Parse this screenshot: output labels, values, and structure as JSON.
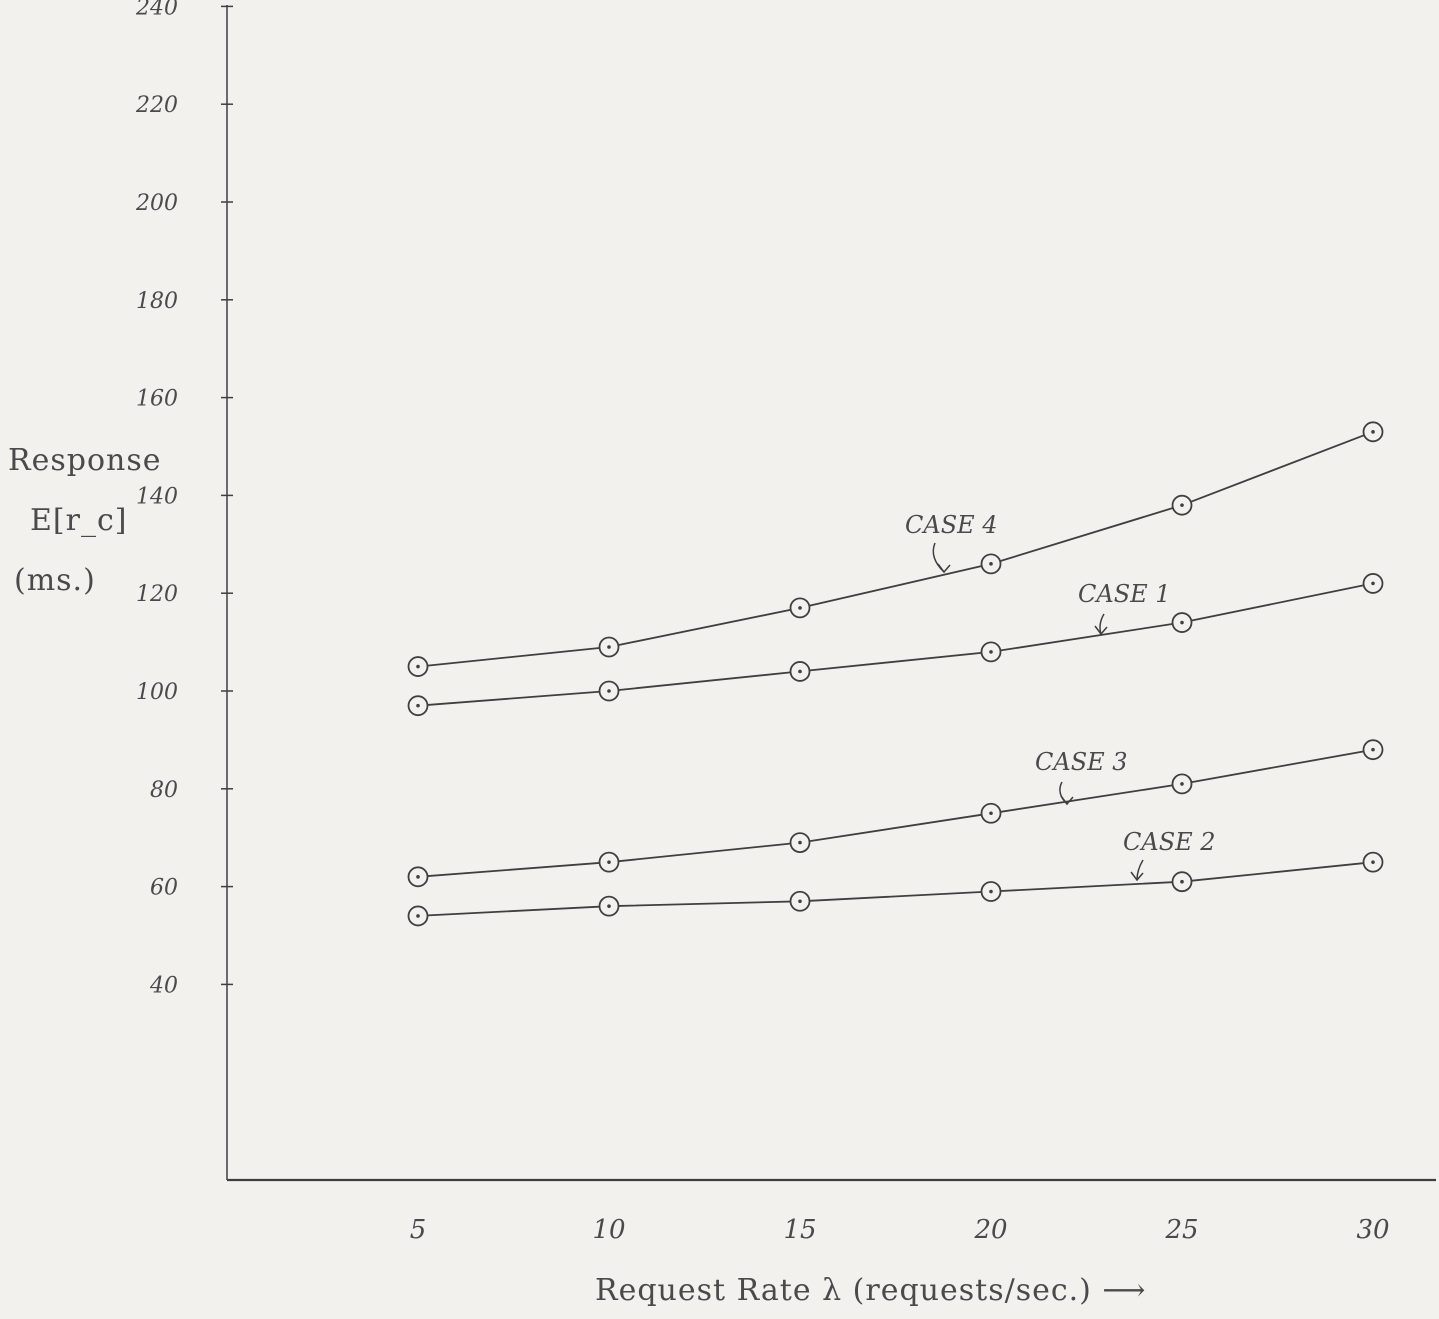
{
  "chart_data": {
    "type": "line",
    "xlabel": "Request Rate λ (requests/sec.) ⟶",
    "ylabel": {
      "line1": "Response",
      "line2": "E[r_c]",
      "line3": "(ms.)"
    },
    "x": [
      5,
      10,
      15,
      20,
      25,
      30
    ],
    "xticks": [
      "5",
      "10",
      "15",
      "20",
      "25",
      "30"
    ],
    "yticks": [
      "40",
      "60",
      "80",
      "100",
      "120",
      "140",
      "160",
      "180",
      "200",
      "220",
      "240"
    ],
    "ylim": [
      0,
      240
    ],
    "grid": false,
    "legend": "none",
    "series": [
      {
        "name": "CASE 4",
        "values": [
          105,
          109,
          117,
          126,
          138,
          153
        ]
      },
      {
        "name": "CASE 1",
        "values": [
          97,
          100,
          104,
          108,
          114,
          122
        ]
      },
      {
        "name": "CASE 3",
        "values": [
          62,
          65,
          69,
          75,
          81,
          88
        ]
      },
      {
        "name": "CASE 2",
        "values": [
          54,
          56,
          57,
          59,
          61,
          65
        ]
      }
    ]
  },
  "style": {
    "ink": "#3f3f3f",
    "paper": "#f2f1ed"
  }
}
